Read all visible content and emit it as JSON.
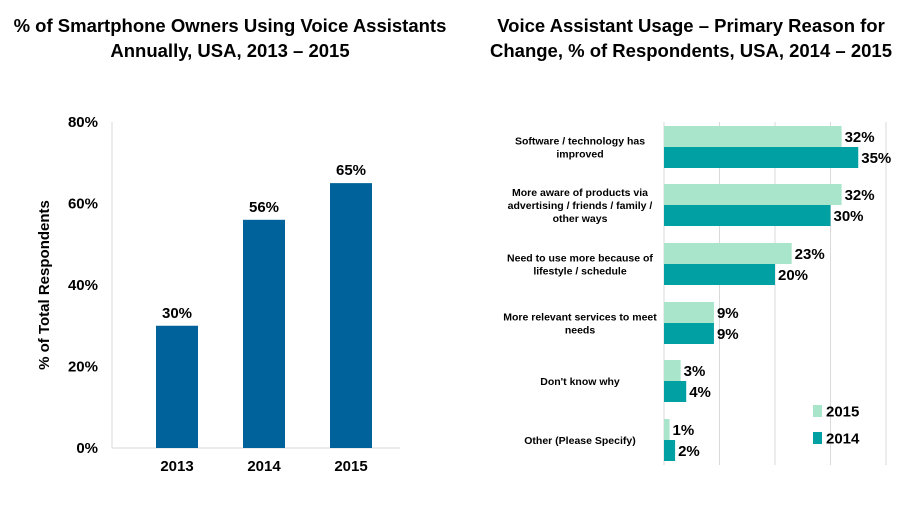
{
  "charts": {
    "left": {
      "title_line1": "% of Smartphone Owners Using Voice Assistants",
      "title_line2": "Annually, USA, 2013 – 2015"
    },
    "right": {
      "title_line1": "Voice Assistant Usage – Primary Reason for",
      "title_line2": "Change, % of Respondents, USA, 2014 – 2015"
    }
  },
  "colors": {
    "bar_left": "#00629b",
    "series_2015": "#a9e5cb",
    "series_2014": "#00a0a3",
    "axis": "#d9d9d9",
    "grid": "#d9d9d9"
  },
  "chart_data": [
    {
      "type": "bar",
      "title": "% of Smartphone Owners Using Voice Assistants Annually, USA, 2013 – 2015",
      "categories": [
        "2013",
        "2014",
        "2015"
      ],
      "values": [
        30,
        56,
        65
      ],
      "value_labels": [
        "30%",
        "56%",
        "65%"
      ],
      "ylabel": "% of Total Respondents",
      "xlabel": "",
      "ylim": [
        0,
        80
      ],
      "yticks": [
        0,
        20,
        40,
        60,
        80
      ],
      "ytick_labels": [
        "0%",
        "20%",
        "40%",
        "60%",
        "80%"
      ],
      "grid": false
    },
    {
      "type": "bar",
      "orientation": "horizontal",
      "title": "Voice Assistant Usage – Primary Reason for Change, % of Respondents, USA, 2014 – 2015",
      "categories": [
        [
          "Software / technology has",
          "improved"
        ],
        [
          "More aware of products via",
          "advertising / friends / family /",
          "other ways"
        ],
        [
          "Need to use more because of",
          "lifestyle / schedule"
        ],
        [
          "More relevant services to meet",
          "needs"
        ],
        [
          "Don't know why"
        ],
        [
          "Other (Please Specify)"
        ]
      ],
      "series": [
        {
          "name": "2015",
          "values": [
            32,
            32,
            23,
            9,
            3,
            1
          ],
          "labels": [
            "32%",
            "32%",
            "23%",
            "9%",
            "3%",
            "1%"
          ]
        },
        {
          "name": "2014",
          "values": [
            35,
            30,
            20,
            9,
            4,
            2
          ],
          "labels": [
            "35%",
            "30%",
            "20%",
            "9%",
            "4%",
            "2%"
          ]
        }
      ],
      "xlim": [
        0,
        40
      ],
      "grid": true,
      "legend_position": "bottom-right"
    }
  ]
}
